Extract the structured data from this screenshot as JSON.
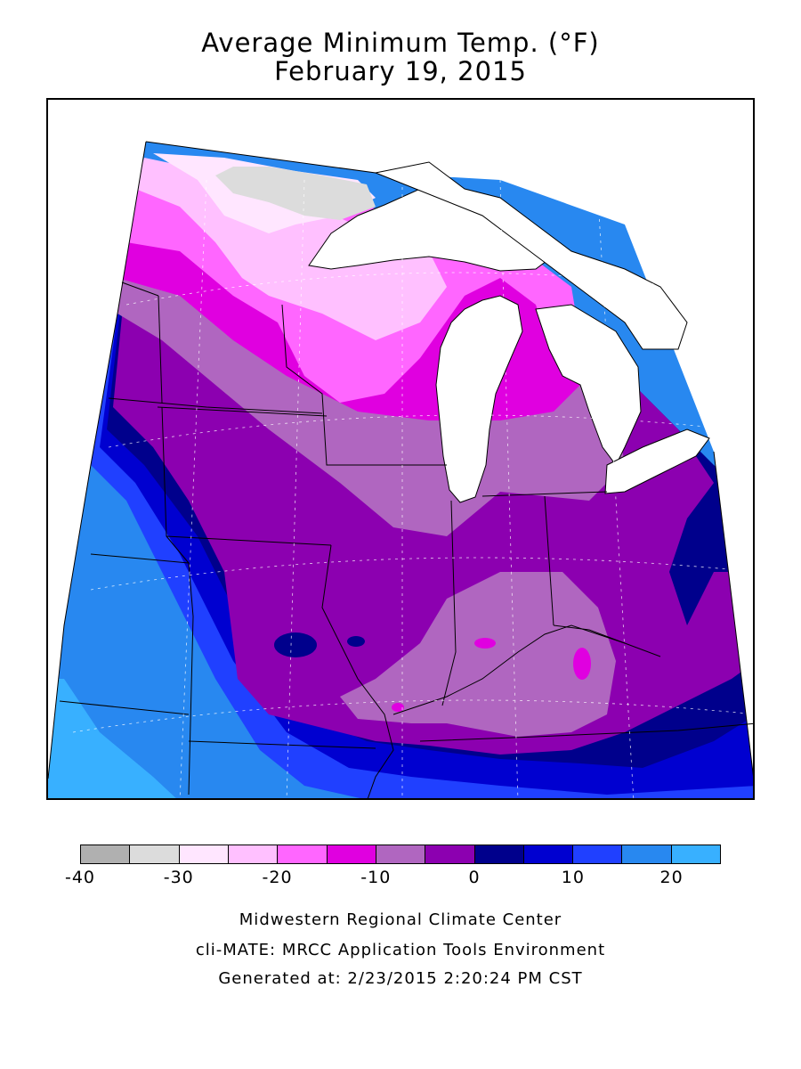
{
  "title": "Average Minimum Temp. (°F)",
  "subtitle": "February 19, 2015",
  "legend": {
    "colors": [
      "#b0b0b0",
      "#dcdcdc",
      "#ffe6ff",
      "#ffc0ff",
      "#ff66ff",
      "#e000e0",
      "#b066c0",
      "#8c00b0",
      "#00008c",
      "#0000d0",
      "#2040ff",
      "#2888f0",
      "#38b0ff"
    ],
    "ticks": [
      "-40",
      "-30",
      "-20",
      "-10",
      "0",
      "10",
      "20"
    ],
    "tick_values": [
      -40,
      -30,
      -20,
      -10,
      0,
      10,
      20
    ],
    "bin_edges": [
      -40,
      -35,
      -30,
      -25,
      -20,
      -15,
      -10,
      -5,
      0,
      5,
      10,
      15,
      20,
      25
    ]
  },
  "credits": {
    "line1": "Midwestern Regional Climate Center",
    "line2": "cli-MATE: MRCC Application Tools Environment",
    "line3": "Generated at: 2/23/2015 2:20:24 PM CST"
  }
}
